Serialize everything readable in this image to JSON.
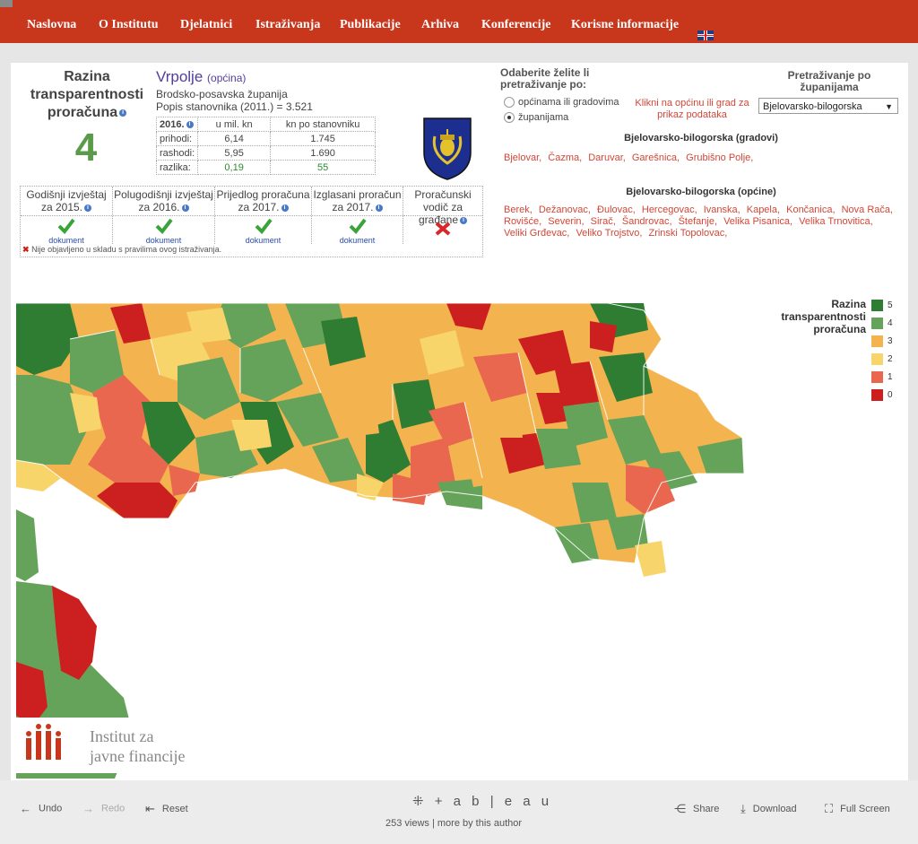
{
  "nav": {
    "items": [
      "Naslovna",
      "O Institutu",
      "Djelatnici",
      "Istraživanja",
      "Publikacije",
      "Arhiva",
      "Konferencije",
      "Korisne informacije"
    ]
  },
  "score": {
    "title_lines": [
      "Razina",
      "transparentnosti",
      "proračuna"
    ],
    "value": "4"
  },
  "municipality": {
    "name": "Vrpolje",
    "type": "(općina)",
    "county": "Brodsko-posavska županija",
    "population": "Popis stanovnika (2011.) = 3.521"
  },
  "finance": {
    "year": "2016.",
    "col1": "u mil. kn",
    "col2": "kn po stanovniku",
    "rows": [
      {
        "label": "prihodi:",
        "v1": "6,14",
        "v2": "1.745"
      },
      {
        "label": "rashodi:",
        "v1": "5,95",
        "v2": "1.690"
      },
      {
        "label": "razlika:",
        "v1": "0,19",
        "v2": "55"
      }
    ]
  },
  "documents": {
    "items": [
      {
        "label": "Godišnji izvještaj za 2015.",
        "status": "yes",
        "link": "dokument"
      },
      {
        "label": "Polugodišnji izvještaj za 2016.",
        "status": "yes",
        "link": "dokument"
      },
      {
        "label": "Prijedlog proračuna za 2017.",
        "status": "yes",
        "link": "dokument"
      },
      {
        "label": "Izglasani proračun za 2017.",
        "status": "yes",
        "link": "dokument"
      },
      {
        "label": "Proračunski vodič za građane",
        "status": "no",
        "link": ""
      }
    ],
    "note": "Nije objavljeno u skladu s pravilima ovog istraživanja."
  },
  "search": {
    "title": "Odaberite želite li pretraživanje po:",
    "option1": "općinama ili gradovima",
    "option2": "županijama",
    "selected": "županijama",
    "hint": "Klikni na općinu ili grad za prikaz podataka",
    "county_title": "Pretraživanje po županijama",
    "county_value": "Bjelovarsko-bilogorska"
  },
  "cities": {
    "header": "Bjelovarsko-bilogorska (gradovi)",
    "items": [
      "Bjelovar,",
      "Čazma,",
      "Daruvar,",
      "Garešnica,",
      "Grubišno Polje,"
    ]
  },
  "municipalities": {
    "header": "Bjelovarsko-bilogorska (općine)",
    "items": [
      "Berek,",
      "Dežanovac,",
      "Đulovac,",
      "Hercegovac,",
      "Ivanska,",
      "Kapela,",
      "Končanica,",
      "Nova Rača,",
      "Rovišće,",
      "Severin,",
      "Sirač,",
      "Šandrovac,",
      "Štefanje,",
      "Velika Pisanica,",
      "Velika Trnovitica,",
      "Veliki Grđevac,",
      "Veliko Trojstvo,",
      "Zrinski Topolovac,"
    ]
  },
  "legend": {
    "title_lines": [
      "Razina",
      "transparentnosti",
      "proračuna"
    ],
    "items": [
      {
        "label": "5",
        "color": "#2e7d32"
      },
      {
        "label": "4",
        "color": "#66a35a"
      },
      {
        "label": "3",
        "color": "#f3b450"
      },
      {
        "label": "2",
        "color": "#f8d56b"
      },
      {
        "label": "1",
        "color": "#e9664f"
      },
      {
        "label": "0",
        "color": "#cc1f1f"
      }
    ]
  },
  "logo": {
    "line1": "Institut za",
    "line2": "javne financije"
  },
  "toolbar": {
    "undo": "Undo",
    "redo": "Redo",
    "reset": "Reset",
    "brand": "+ a b | e a u",
    "views": "253 views | more by this author",
    "share": "Share",
    "download": "Download",
    "fullscreen": "Full Screen"
  }
}
